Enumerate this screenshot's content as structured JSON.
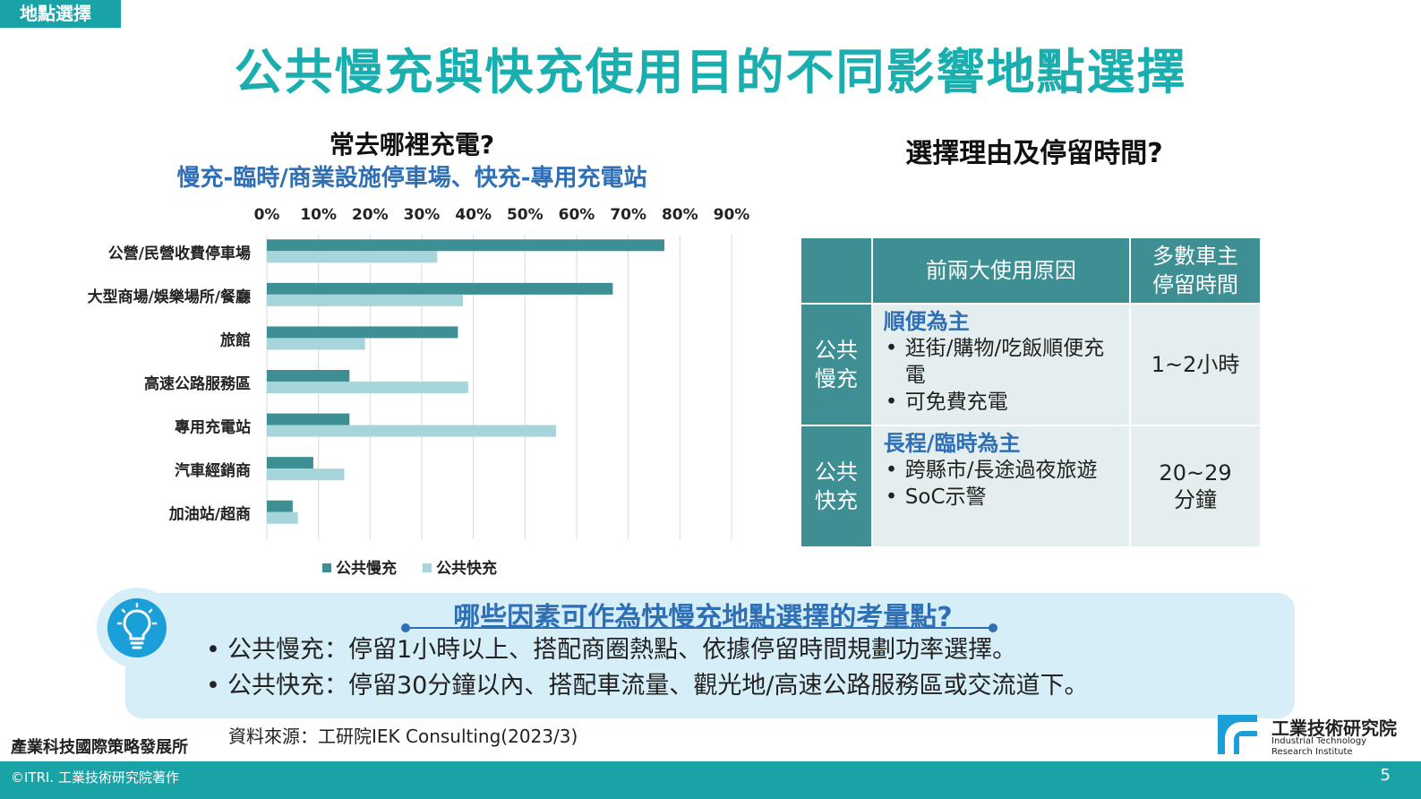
{
  "header": {
    "tag": "地點選擇",
    "title": "公共慢充與快充使用目的不同影響地點選擇"
  },
  "chart_data": {
    "type": "bar",
    "orientation": "horizontal",
    "title": "常去哪裡充電?",
    "subtitle": "慢充-臨時/商業設施停車場、快充-專用充電站",
    "categories": [
      "公營/民營收費停車場",
      "大型商場/娛樂場所/餐廳",
      "旅館",
      "高速公路服務區",
      "專用充電站",
      "汽車經銷商",
      "加油站/超商"
    ],
    "series": [
      {
        "name": "公共慢充",
        "color": "#3d8f93",
        "values": [
          77,
          67,
          37,
          16,
          16,
          9,
          5
        ]
      },
      {
        "name": "公共快充",
        "color": "#a6d6dc",
        "values": [
          33,
          38,
          19,
          39,
          56,
          15,
          6
        ]
      }
    ],
    "xlim": [
      0,
      90
    ],
    "xticks": [
      "0%",
      "10%",
      "20%",
      "30%",
      "40%",
      "50%",
      "60%",
      "70%",
      "80%",
      "90%"
    ],
    "xaxis_position": "top",
    "grid": true,
    "legend_position": "bottom"
  },
  "table": {
    "title": "選擇理由及停留時間?",
    "headers": [
      "",
      "前兩大使用原因",
      "多數車主停留時間"
    ],
    "rows": [
      {
        "label": "公共慢充",
        "reason_head": "順便為主",
        "bullets": [
          "逛街/購物/吃飯順便充電",
          "可免費充電"
        ],
        "time": "1~2小時"
      },
      {
        "label": "公共快充",
        "reason_head": "長程/臨時為主",
        "bullets": [
          "跨縣市/長途過夜旅遊",
          "SoC示警"
        ],
        "time": "20~29分鐘"
      }
    ]
  },
  "tip": {
    "icon": "lightbulb-icon",
    "question": "哪些因素可作為快慢充地點選擇的考量點?",
    "items": [
      "公共慢充：停留1小時以上、搭配商圈熱點、依據停留時間規劃功率選擇。",
      "公共快充：停留30分鐘以內、搭配車流量、觀光地/高速公路服務區或交流道下。"
    ]
  },
  "footer": {
    "institute": "產業科技國際策略發展所",
    "source": "資料來源：工研院IEK Consulting(2023/3)",
    "logo_zh": "工業技術研究院",
    "logo_en_line1": "Industrial Technology",
    "logo_en_line2": "Research Institute",
    "copyright": "©ITRI. 工業技術研究院著作",
    "page": "5"
  },
  "colors": {
    "teal": "#1aa3a6",
    "title": "#1aaeae",
    "slow": "#3d8f93",
    "fast": "#a6d6dc",
    "blue": "#2e6fb5",
    "tip_bg": "#d5eef7"
  }
}
